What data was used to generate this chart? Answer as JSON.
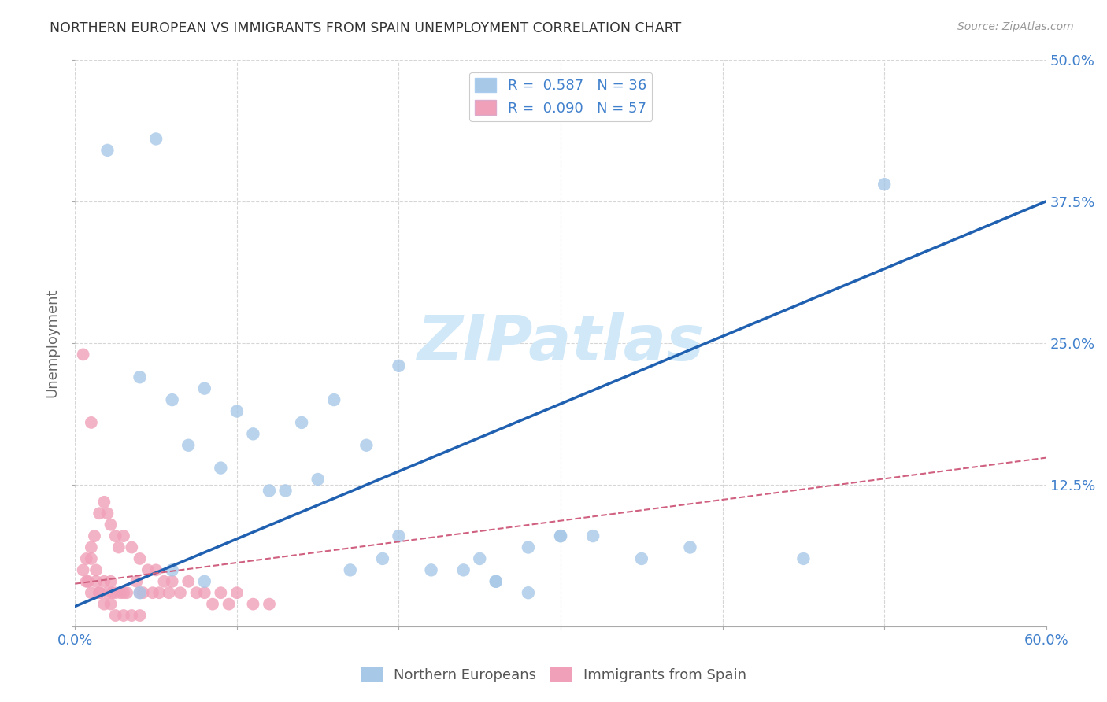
{
  "title": "NORTHERN EUROPEAN VS IMMIGRANTS FROM SPAIN UNEMPLOYMENT CORRELATION CHART",
  "source": "Source: ZipAtlas.com",
  "ylabel": "Unemployment",
  "xlim": [
    0.0,
    0.6
  ],
  "ylim": [
    0.0,
    0.5
  ],
  "xticks": [
    0.0,
    0.1,
    0.2,
    0.3,
    0.4,
    0.5,
    0.6
  ],
  "yticks": [
    0.0,
    0.125,
    0.25,
    0.375,
    0.5
  ],
  "xticklabels": [
    "0.0%",
    "",
    "",
    "",
    "",
    "",
    "60.0%"
  ],
  "yticklabels": [
    "",
    "12.5%",
    "25.0%",
    "37.5%",
    "50.0%"
  ],
  "R_blue": 0.587,
  "N_blue": 36,
  "R_pink": 0.09,
  "N_pink": 57,
  "blue_color": "#a8c8e8",
  "pink_color": "#f0a0b8",
  "blue_line_color": "#2060b0",
  "pink_line_color": "#d06080",
  "grid_color": "#cccccc",
  "title_color": "#333333",
  "axis_label_color": "#4080cc",
  "watermark_color": "#d0e8f8",
  "blue_scatter_x": [
    0.02,
    0.04,
    0.05,
    0.06,
    0.07,
    0.08,
    0.09,
    0.1,
    0.11,
    0.12,
    0.13,
    0.14,
    0.15,
    0.16,
    0.17,
    0.18,
    0.19,
    0.2,
    0.22,
    0.24,
    0.25,
    0.26,
    0.28,
    0.3,
    0.32,
    0.35,
    0.38,
    0.2,
    0.08,
    0.06,
    0.04,
    0.5,
    0.26,
    0.28,
    0.3,
    0.45
  ],
  "blue_scatter_y": [
    0.42,
    0.22,
    0.43,
    0.2,
    0.16,
    0.21,
    0.14,
    0.19,
    0.17,
    0.12,
    0.12,
    0.18,
    0.13,
    0.2,
    0.05,
    0.16,
    0.06,
    0.23,
    0.05,
    0.05,
    0.06,
    0.04,
    0.07,
    0.08,
    0.08,
    0.06,
    0.07,
    0.08,
    0.04,
    0.05,
    0.03,
    0.39,
    0.04,
    0.03,
    0.08,
    0.06
  ],
  "pink_scatter_x": [
    0.005,
    0.007,
    0.008,
    0.01,
    0.01,
    0.01,
    0.012,
    0.013,
    0.015,
    0.015,
    0.018,
    0.018,
    0.02,
    0.02,
    0.022,
    0.022,
    0.023,
    0.025,
    0.025,
    0.027,
    0.028,
    0.03,
    0.03,
    0.032,
    0.035,
    0.038,
    0.04,
    0.04,
    0.042,
    0.045,
    0.048,
    0.05,
    0.052,
    0.055,
    0.058,
    0.06,
    0.065,
    0.07,
    0.075,
    0.08,
    0.085,
    0.09,
    0.095,
    0.1,
    0.11,
    0.12,
    0.005,
    0.007,
    0.01,
    0.013,
    0.015,
    0.018,
    0.022,
    0.025,
    0.03,
    0.035,
    0.04
  ],
  "pink_scatter_y": [
    0.24,
    0.06,
    0.04,
    0.18,
    0.07,
    0.03,
    0.08,
    0.05,
    0.1,
    0.03,
    0.11,
    0.04,
    0.1,
    0.03,
    0.09,
    0.04,
    0.03,
    0.08,
    0.03,
    0.07,
    0.03,
    0.08,
    0.03,
    0.03,
    0.07,
    0.04,
    0.06,
    0.03,
    0.03,
    0.05,
    0.03,
    0.05,
    0.03,
    0.04,
    0.03,
    0.04,
    0.03,
    0.04,
    0.03,
    0.03,
    0.02,
    0.03,
    0.02,
    0.03,
    0.02,
    0.02,
    0.05,
    0.04,
    0.06,
    0.04,
    0.03,
    0.02,
    0.02,
    0.01,
    0.01,
    0.01,
    0.01
  ],
  "blue_line_y_intercept": 0.018,
  "blue_line_slope": 0.595,
  "pink_line_y_intercept": 0.038,
  "pink_line_slope": 0.185
}
